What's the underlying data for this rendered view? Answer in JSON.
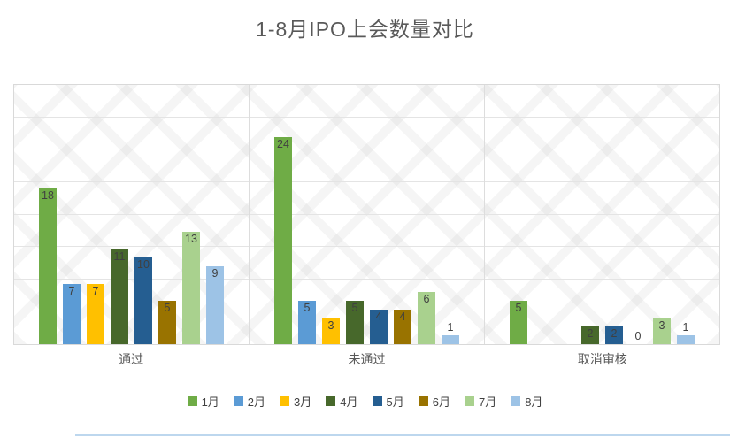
{
  "chart_data": {
    "type": "bar",
    "title": "1-8月IPO上会数量对比",
    "categories": [
      "通过",
      "未通过",
      "取消审核"
    ],
    "series": [
      {
        "name": "1月",
        "color": "#6FAC46",
        "values": [
          18,
          24,
          5
        ]
      },
      {
        "name": "2月",
        "color": "#5B9BD5",
        "values": [
          7,
          5,
          null
        ]
      },
      {
        "name": "3月",
        "color": "#FFC000",
        "values": [
          7,
          3,
          null
        ]
      },
      {
        "name": "4月",
        "color": "#47682B",
        "values": [
          11,
          5,
          2
        ]
      },
      {
        "name": "5月",
        "color": "#255E91",
        "values": [
          10,
          4,
          2
        ]
      },
      {
        "name": "6月",
        "color": "#997300",
        "values": [
          5,
          4,
          0
        ]
      },
      {
        "name": "7月",
        "color": "#A9D18E",
        "values": [
          13,
          6,
          3
        ]
      },
      {
        "name": "8月",
        "color": "#9DC3E6",
        "values": [
          9,
          1,
          1
        ]
      }
    ],
    "xlabel": "",
    "ylabel": "",
    "ylim": [
      0,
      30
    ],
    "grid_intervals": 8,
    "grid": "on",
    "legend_position": "bottom",
    "data_labels": true,
    "plot_background": "diagonal-crosshatch"
  },
  "title_color": "#595959",
  "label_color": "#404040",
  "axis_label_color": "#595959",
  "gridline_color": "#E4E4E4"
}
